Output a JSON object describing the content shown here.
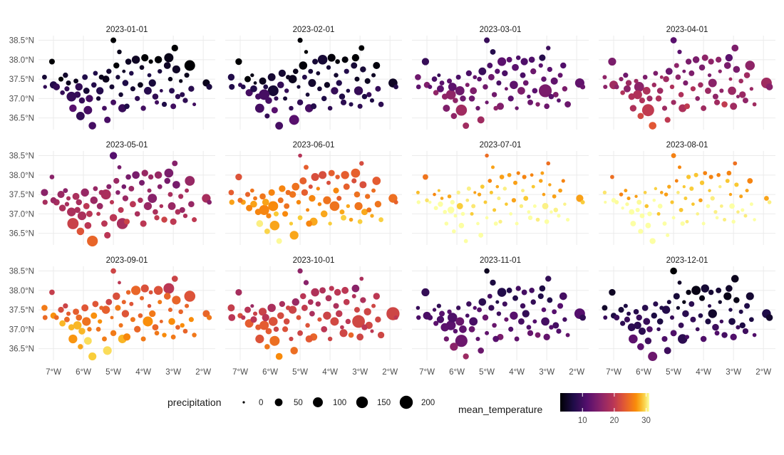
{
  "chart_data": {
    "type": "scatter",
    "facet_by": "date",
    "panels": [
      {
        "title": "2023-01-01",
        "temp_base": 6
      },
      {
        "title": "2023-02-01",
        "temp_base": 6
      },
      {
        "title": "2023-03-01",
        "temp_base": 12
      },
      {
        "title": "2023-04-01",
        "temp_base": 16
      },
      {
        "title": "2023-05-01",
        "temp_base": 17
      },
      {
        "title": "2023-06-01",
        "temp_base": 25
      },
      {
        "title": "2023-07-01",
        "temp_base": 29
      },
      {
        "title": "2023-08-01",
        "temp_base": 29
      },
      {
        "title": "2023-09-01",
        "temp_base": 24
      },
      {
        "title": "2023-10-01",
        "temp_base": 20
      },
      {
        "title": "2023-11-01",
        "temp_base": 10
      },
      {
        "title": "2023-12-01",
        "temp_base": 7
      }
    ],
    "x_axis": {
      "range": [
        -7.5,
        -1.6
      ],
      "ticks": [
        -7,
        -6,
        -5,
        -4,
        -3,
        -2
      ],
      "tick_labels": [
        "7°W",
        "6°W",
        "5°W",
        "4°W",
        "3°W",
        "2°W"
      ]
    },
    "y_axis": {
      "range": [
        36.2,
        38.62
      ],
      "ticks": [
        36.5,
        37.0,
        37.5,
        38.0,
        38.5
      ],
      "tick_labels": [
        "36.5°N",
        "37.0°N",
        "37.5°N",
        "38.0°N",
        "38.5°N"
      ]
    },
    "size_legend": {
      "title": "precipitation",
      "values": [
        0,
        50,
        100,
        150,
        200
      ],
      "labels": [
        "0",
        "50",
        "100",
        "150",
        "200"
      ]
    },
    "color_legend": {
      "title": "mean_temperature",
      "range": [
        3,
        31
      ],
      "ticks": [
        10,
        20,
        30
      ],
      "tick_labels": [
        "10",
        "20",
        "30"
      ]
    },
    "stations": [
      {
        "lon": -7.3,
        "lat": 37.55,
        "p": 40,
        "dt": 0
      },
      {
        "lon": -7.28,
        "lat": 37.3,
        "p": 25,
        "dt": 1
      },
      {
        "lon": -7.05,
        "lat": 37.95,
        "p": 70,
        "dt": -2
      },
      {
        "lon": -7.0,
        "lat": 37.35,
        "p": 55,
        "dt": 1
      },
      {
        "lon": -6.9,
        "lat": 37.3,
        "p": 30,
        "dt": 1
      },
      {
        "lon": -6.75,
        "lat": 37.5,
        "p": 35,
        "dt": -1
      },
      {
        "lon": -6.7,
        "lat": 37.15,
        "p": 45,
        "dt": 2
      },
      {
        "lon": -6.55,
        "lat": 37.25,
        "p": 60,
        "dt": 1
      },
      {
        "lon": -6.5,
        "lat": 37.4,
        "p": 20,
        "dt": 0
      },
      {
        "lon": -6.4,
        "lat": 37.05,
        "p": 80,
        "dt": 2
      },
      {
        "lon": -6.35,
        "lat": 36.75,
        "p": 110,
        "dt": 3
      },
      {
        "lon": -6.25,
        "lat": 37.45,
        "p": 40,
        "dt": 0
      },
      {
        "lon": -6.2,
        "lat": 37.1,
        "p": 150,
        "dt": 2
      },
      {
        "lon": -6.15,
        "lat": 37.3,
        "p": 90,
        "dt": 1
      },
      {
        "lon": -6.1,
        "lat": 36.55,
        "p": 60,
        "dt": 3
      },
      {
        "lon": -6.05,
        "lat": 36.95,
        "p": 55,
        "dt": 2
      },
      {
        "lon": -5.95,
        "lat": 37.55,
        "p": 50,
        "dt": 0
      },
      {
        "lon": -5.9,
        "lat": 37.2,
        "p": 130,
        "dt": 1
      },
      {
        "lon": -5.85,
        "lat": 36.7,
        "p": 170,
        "dt": 3
      },
      {
        "lon": -5.8,
        "lat": 37.0,
        "p": 45,
        "dt": 2
      },
      {
        "lon": -5.7,
        "lat": 36.3,
        "p": 100,
        "dt": 4
      },
      {
        "lon": -5.65,
        "lat": 37.35,
        "p": 35,
        "dt": 1
      },
      {
        "lon": -5.6,
        "lat": 37.65,
        "p": 40,
        "dt": 0
      },
      {
        "lon": -5.5,
        "lat": 37.0,
        "p": 30,
        "dt": 1
      },
      {
        "lon": -5.45,
        "lat": 37.2,
        "p": 55,
        "dt": 1
      },
      {
        "lon": -5.3,
        "lat": 36.75,
        "p": 25,
        "dt": 2
      },
      {
        "lon": -5.25,
        "lat": 37.5,
        "p": 70,
        "dt": 0
      },
      {
        "lon": -5.2,
        "lat": 36.45,
        "p": 85,
        "dt": 3
      },
      {
        "lon": -5.15,
        "lat": 37.7,
        "p": 60,
        "dt": -1
      },
      {
        "lon": -5.05,
        "lat": 37.3,
        "p": 20,
        "dt": 1
      },
      {
        "lon": -5.0,
        "lat": 38.5,
        "p": 45,
        "dt": -3
      },
      {
        "lon": -5.0,
        "lat": 36.9,
        "p": 30,
        "dt": 2
      },
      {
        "lon": -4.9,
        "lat": 37.85,
        "p": 50,
        "dt": -1
      },
      {
        "lon": -4.85,
        "lat": 37.55,
        "p": 35,
        "dt": 0
      },
      {
        "lon": -4.8,
        "lat": 38.2,
        "p": 20,
        "dt": -2
      },
      {
        "lon": -4.75,
        "lat": 37.1,
        "p": 25,
        "dt": 1
      },
      {
        "lon": -4.7,
        "lat": 36.75,
        "p": 90,
        "dt": 2
      },
      {
        "lon": -4.6,
        "lat": 37.4,
        "p": 45,
        "dt": 0
      },
      {
        "lon": -4.55,
        "lat": 36.8,
        "p": 55,
        "dt": 2
      },
      {
        "lon": -4.5,
        "lat": 37.95,
        "p": 70,
        "dt": -1
      },
      {
        "lon": -4.4,
        "lat": 37.65,
        "p": 30,
        "dt": 0
      },
      {
        "lon": -4.35,
        "lat": 37.25,
        "p": 20,
        "dt": 1
      },
      {
        "lon": -4.25,
        "lat": 38.0,
        "p": 85,
        "dt": -1
      },
      {
        "lon": -4.2,
        "lat": 37.0,
        "p": 35,
        "dt": 1
      },
      {
        "lon": -4.1,
        "lat": 37.35,
        "p": 60,
        "dt": 0
      },
      {
        "lon": -4.05,
        "lat": 37.8,
        "p": 40,
        "dt": -1
      },
      {
        "lon": -4.0,
        "lat": 36.75,
        "p": 25,
        "dt": 2
      },
      {
        "lon": -3.95,
        "lat": 38.05,
        "p": 55,
        "dt": -1
      },
      {
        "lon": -3.85,
        "lat": 37.2,
        "p": 95,
        "dt": 1
      },
      {
        "lon": -3.8,
        "lat": 37.6,
        "p": 20,
        "dt": 0
      },
      {
        "lon": -3.75,
        "lat": 37.95,
        "p": 40,
        "dt": -1
      },
      {
        "lon": -3.7,
        "lat": 37.4,
        "p": 80,
        "dt": 0
      },
      {
        "lon": -3.6,
        "lat": 37.05,
        "p": 30,
        "dt": 1
      },
      {
        "lon": -3.5,
        "lat": 38.0,
        "p": 65,
        "dt": -1
      },
      {
        "lon": -3.45,
        "lat": 37.7,
        "p": 25,
        "dt": 0
      },
      {
        "lon": -3.4,
        "lat": 37.2,
        "p": 15,
        "dt": 1
      },
      {
        "lon": -3.3,
        "lat": 36.85,
        "p": 30,
        "dt": 2
      },
      {
        "lon": -3.2,
        "lat": 37.85,
        "p": 45,
        "dt": -1
      },
      {
        "lon": -3.15,
        "lat": 38.05,
        "p": 100,
        "dt": -2
      },
      {
        "lon": -3.1,
        "lat": 37.5,
        "p": 20,
        "dt": 0
      },
      {
        "lon": -3.05,
        "lat": 37.2,
        "p": 160,
        "dt": 1
      },
      {
        "lon": -3.0,
        "lat": 36.8,
        "p": 50,
        "dt": 2
      },
      {
        "lon": -2.95,
        "lat": 38.3,
        "p": 40,
        "dt": -2
      },
      {
        "lon": -2.9,
        "lat": 37.75,
        "p": 60,
        "dt": -1
      },
      {
        "lon": -2.85,
        "lat": 37.05,
        "p": 25,
        "dt": 1
      },
      {
        "lon": -2.75,
        "lat": 37.45,
        "p": 35,
        "dt": 0
      },
      {
        "lon": -2.7,
        "lat": 37.1,
        "p": 45,
        "dt": 1
      },
      {
        "lon": -2.6,
        "lat": 36.95,
        "p": 20,
        "dt": 1
      },
      {
        "lon": -2.45,
        "lat": 37.85,
        "p": 120,
        "dt": -1
      },
      {
        "lon": -2.4,
        "lat": 37.25,
        "p": 30,
        "dt": 1
      },
      {
        "lon": -2.3,
        "lat": 36.85,
        "p": 25,
        "dt": 2
      },
      {
        "lon": -1.9,
        "lat": 37.4,
        "p": 190,
        "dt": 0
      },
      {
        "lon": -1.8,
        "lat": 37.3,
        "p": 35,
        "dt": 0
      },
      {
        "lon": -6.6,
        "lat": 37.6,
        "p": 15,
        "dt": -1
      },
      {
        "lon": -5.4,
        "lat": 37.55,
        "p": 15,
        "dt": 0
      },
      {
        "lon": -4.65,
        "lat": 37.7,
        "p": 15,
        "dt": -1
      },
      {
        "lon": -3.55,
        "lat": 36.9,
        "p": 40,
        "dt": 2
      },
      {
        "lon": -2.55,
        "lat": 37.6,
        "p": 25,
        "dt": 0
      }
    ]
  }
}
